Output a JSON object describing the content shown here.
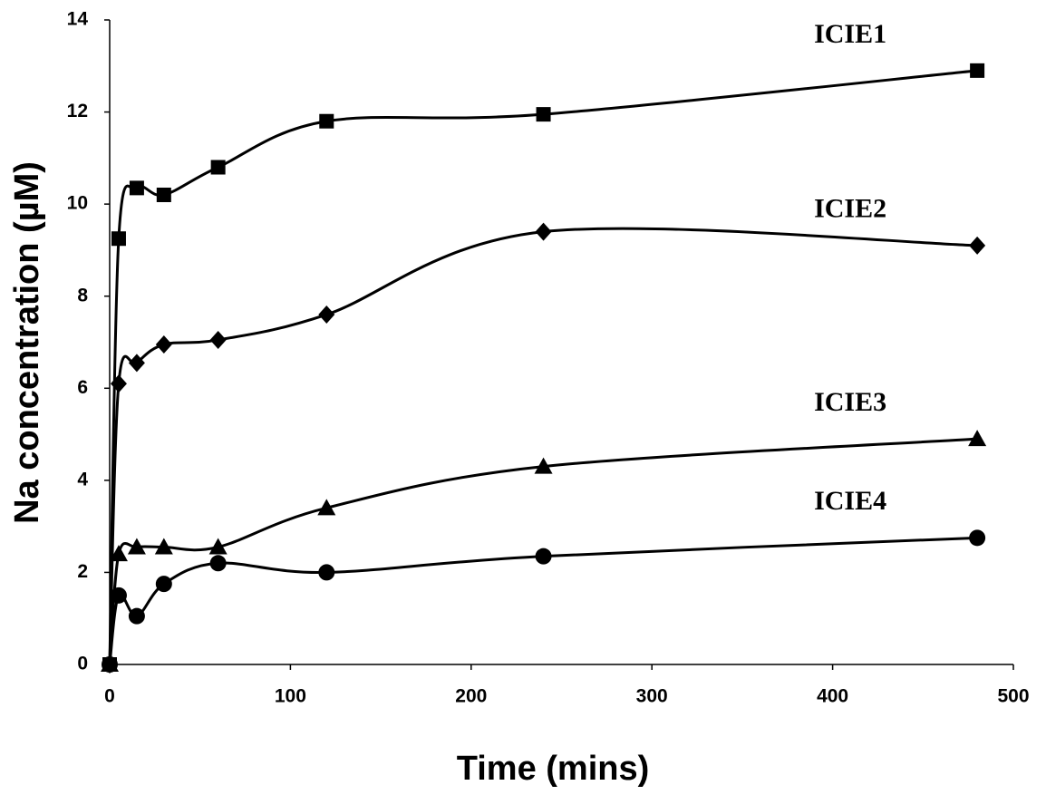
{
  "chart_data": {
    "type": "line",
    "x_label": "Time (mins)",
    "y_label": "Na concentration (µM)",
    "x": [
      0,
      5,
      15,
      30,
      60,
      120,
      240,
      480
    ],
    "series": [
      {
        "name": "ICIE1",
        "color": "#000000",
        "marker": "square",
        "values": [
          0,
          9.25,
          10.35,
          10.2,
          10.8,
          11.8,
          11.95,
          12.9
        ]
      },
      {
        "name": "ICIE2",
        "color": "#000000",
        "marker": "diamond",
        "values": [
          0,
          6.1,
          6.55,
          6.95,
          7.05,
          7.6,
          9.4,
          9.1
        ]
      },
      {
        "name": "ICIE3",
        "color": "#000000",
        "marker": "triangle",
        "values": [
          0,
          2.4,
          2.55,
          2.55,
          2.55,
          3.4,
          4.3,
          4.9
        ]
      },
      {
        "name": "ICIE4",
        "color": "#000000",
        "marker": "circle",
        "values": [
          0,
          1.5,
          1.05,
          1.75,
          2.2,
          2.0,
          2.35,
          2.75
        ]
      }
    ],
    "xlim": [
      0,
      500
    ],
    "xticks": [
      0,
      100,
      200,
      300,
      400,
      500
    ],
    "ylim": [
      0,
      14
    ],
    "yticks": [
      0,
      2,
      4,
      6,
      8,
      10,
      12,
      14
    ],
    "smooth": true
  }
}
